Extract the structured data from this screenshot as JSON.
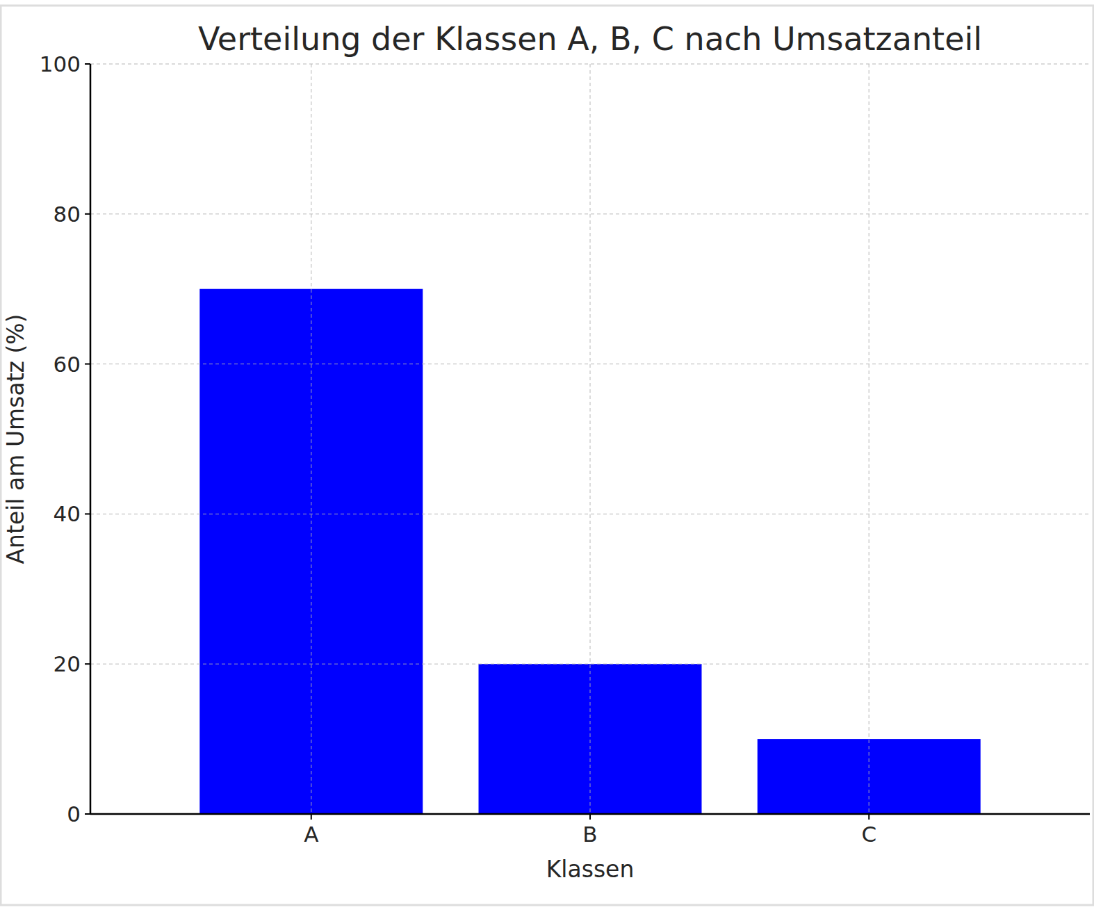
{
  "chart_data": {
    "type": "bar",
    "title": "Verteilung der Klassen A, B, C nach Umsatzanteil",
    "x_label": "Klassen",
    "y_label": "Anteil am Umsatz (%)",
    "categories": [
      "A",
      "B",
      "C"
    ],
    "values": [
      70,
      20,
      10
    ],
    "color": "#0000ff",
    "ylim": [
      0,
      100
    ],
    "yticks": [
      0,
      20,
      40,
      60,
      80,
      100
    ],
    "grid": true
  }
}
